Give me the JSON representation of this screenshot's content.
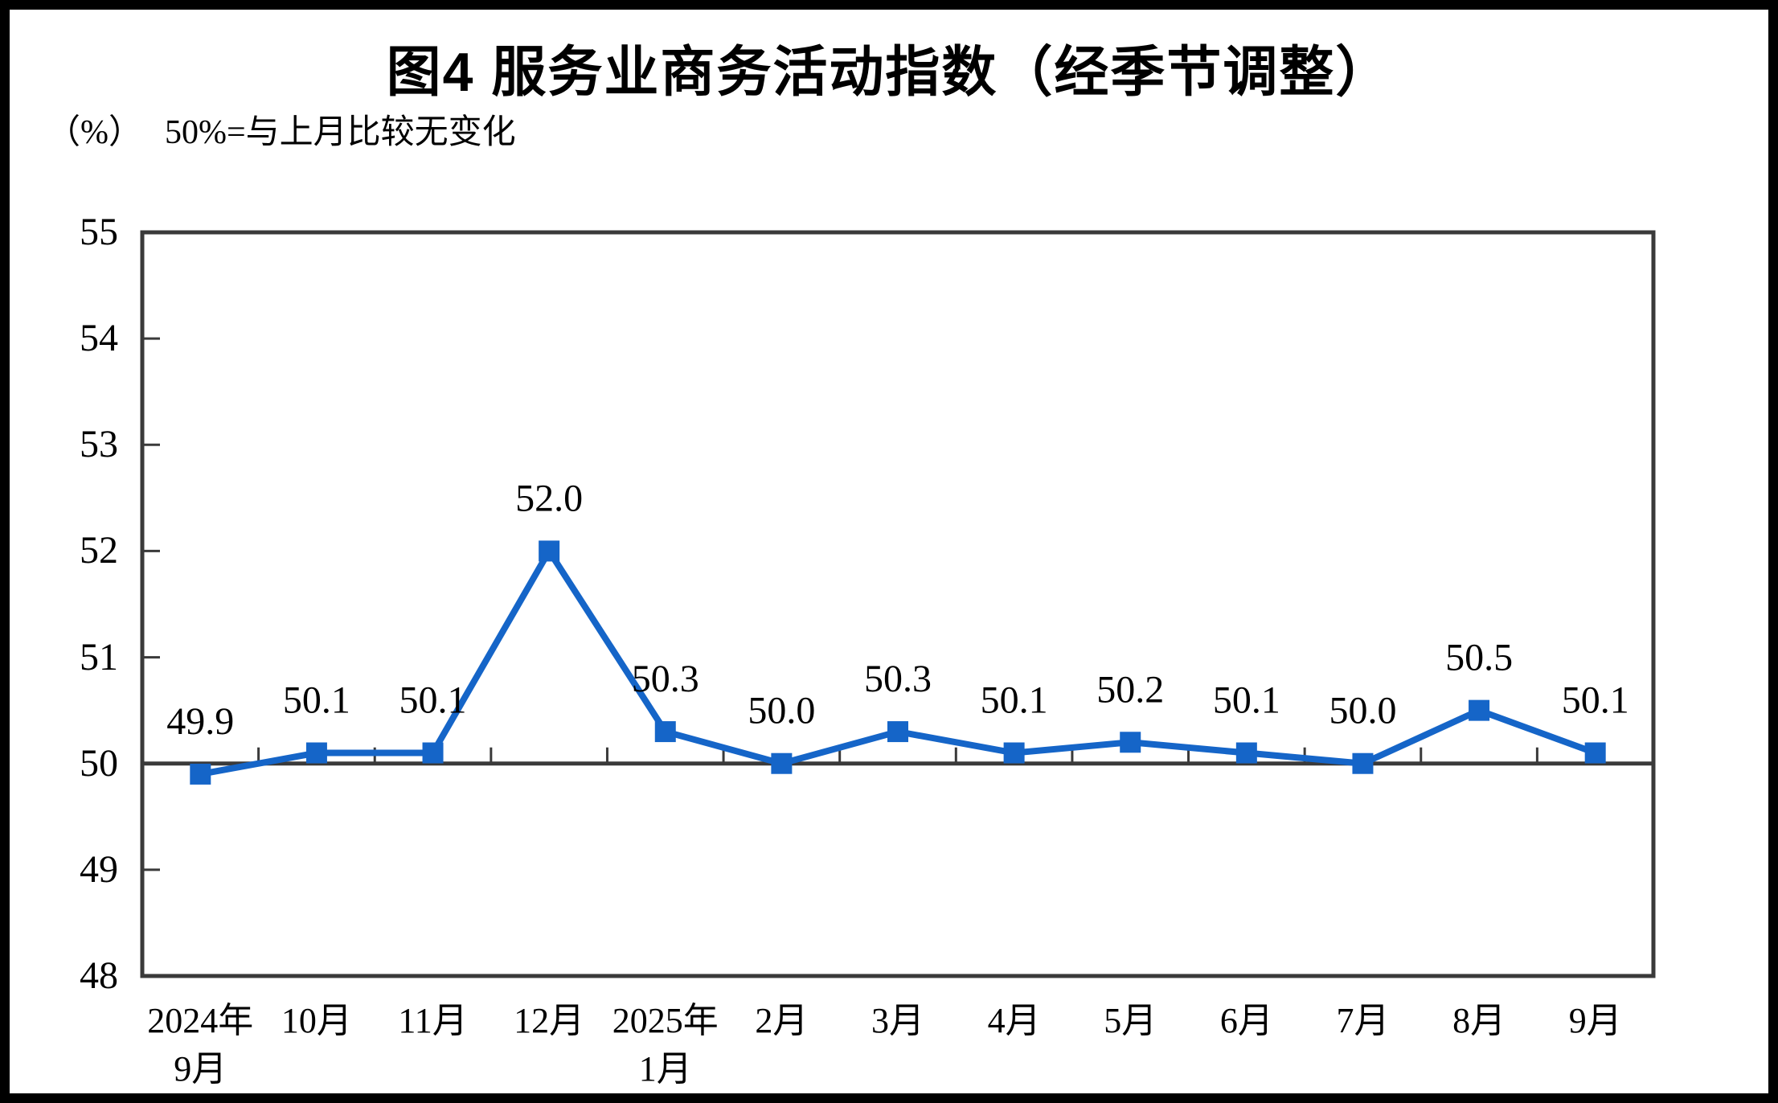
{
  "chart_data": {
    "type": "line",
    "title": "图4  服务业商务活动指数（经季节调整）",
    "unit_label": "（%）",
    "note": "50%=与上月比较无变化",
    "categories": [
      [
        "2024年",
        "9月"
      ],
      [
        "10月"
      ],
      [
        "11月"
      ],
      [
        "12月"
      ],
      [
        "2025年",
        "1月"
      ],
      [
        "2月"
      ],
      [
        "3月"
      ],
      [
        "4月"
      ],
      [
        "5月"
      ],
      [
        "6月"
      ],
      [
        "7月"
      ],
      [
        "8月"
      ],
      [
        "9月"
      ]
    ],
    "series": [
      {
        "name": "服务业商务活动指数",
        "values": [
          49.9,
          50.1,
          50.1,
          52.0,
          50.3,
          50.0,
          50.3,
          50.1,
          50.2,
          50.1,
          50.0,
          50.5,
          50.1
        ],
        "labels": [
          "49.9",
          "50.1",
          "50.1",
          "52.0",
          "50.3",
          "50.0",
          "50.3",
          "50.1",
          "50.2",
          "50.1",
          "50.0",
          "50.5",
          "50.1"
        ]
      }
    ],
    "ylim": [
      48,
      55
    ],
    "yticks": [
      48,
      49,
      50,
      51,
      52,
      53,
      54,
      55
    ],
    "reference_value": 50,
    "grid": "off",
    "legend": "none",
    "colors": {
      "line": "#1565C8",
      "marker": "#1565C8",
      "axis": "#3A3A3A",
      "text": "#000000",
      "background": "#FFFFFF",
      "page_border": "#000000"
    }
  }
}
